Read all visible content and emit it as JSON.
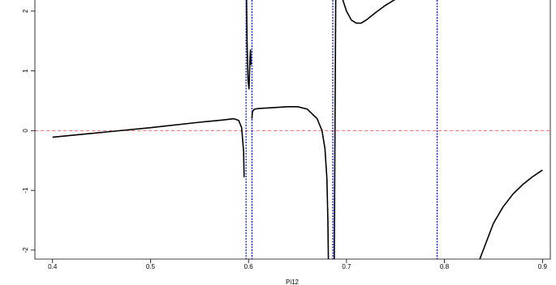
{
  "chart_data": {
    "type": "line",
    "title": "",
    "xlabel": "Pi12",
    "ylabel": "",
    "xlim": [
      0.382,
      0.908
    ],
    "ylim": [
      -2.15,
      2.2
    ],
    "xticks": [
      0.4,
      0.5,
      0.6,
      0.7,
      0.8,
      0.9
    ],
    "xtick_labels": [
      "0.4",
      "0.5",
      "0.6",
      "0.7",
      "0.8",
      "0.9"
    ],
    "yticks": [
      -2,
      -1,
      0,
      1,
      2
    ],
    "ytick_labels": [
      "-2",
      "-1",
      "0",
      "1",
      "2"
    ],
    "grid": false,
    "colors": {
      "curve": "#000000",
      "reference": "#ff6666",
      "asymptote": "#0000cc"
    },
    "reference_line": {
      "y": 0,
      "style": "dashed"
    },
    "asymptotes_x": [
      0.5975,
      0.6035,
      0.686,
      0.7925
    ],
    "series": [
      {
        "segments": [
          {
            "x": [
              0.4,
              0.45,
              0.5,
              0.55,
              0.575,
              0.585,
              0.59,
              0.593,
              0.595,
              0.5955
            ],
            "y": [
              -0.11,
              -0.03,
              0.05,
              0.14,
              0.18,
              0.2,
              0.17,
              0.05,
              -0.35,
              -0.78
            ]
          },
          {
            "x": [
              0.598,
              0.5985,
              0.5995,
              0.6005,
              0.601,
              0.6015,
              0.602,
              0.6025
            ],
            "y": [
              2.2,
              1.5,
              0.85,
              0.7,
              0.95,
              1.2,
              1.35,
              1.1
            ]
          },
          {
            "x": [
              0.6035,
              0.604,
              0.606,
              0.61,
              0.62,
              0.64,
              0.65,
              0.66,
              0.67,
              0.675,
              0.678,
              0.68,
              0.681,
              0.6815
            ],
            "y": [
              0.2,
              0.32,
              0.36,
              0.37,
              0.38,
              0.4,
              0.4,
              0.36,
              0.2,
              0.0,
              -0.3,
              -0.8,
              -1.5,
              -2.15
            ]
          },
          {
            "x": [
              0.6875,
              0.689
            ],
            "y": [
              -2.15,
              2.2
            ]
          },
          {
            "x": [
              0.696,
              0.7,
              0.705,
              0.71,
              0.715,
              0.72,
              0.73,
              0.74,
              0.75
            ],
            "y": [
              2.2,
              2.0,
              1.85,
              1.8,
              1.8,
              1.85,
              1.98,
              2.1,
              2.2
            ]
          },
          {
            "x": [
              0.836,
              0.85,
              0.86,
              0.87,
              0.88,
              0.89,
              0.9
            ],
            "y": [
              -2.15,
              -1.55,
              -1.27,
              -1.06,
              -0.9,
              -0.77,
              -0.66
            ]
          }
        ]
      }
    ]
  }
}
